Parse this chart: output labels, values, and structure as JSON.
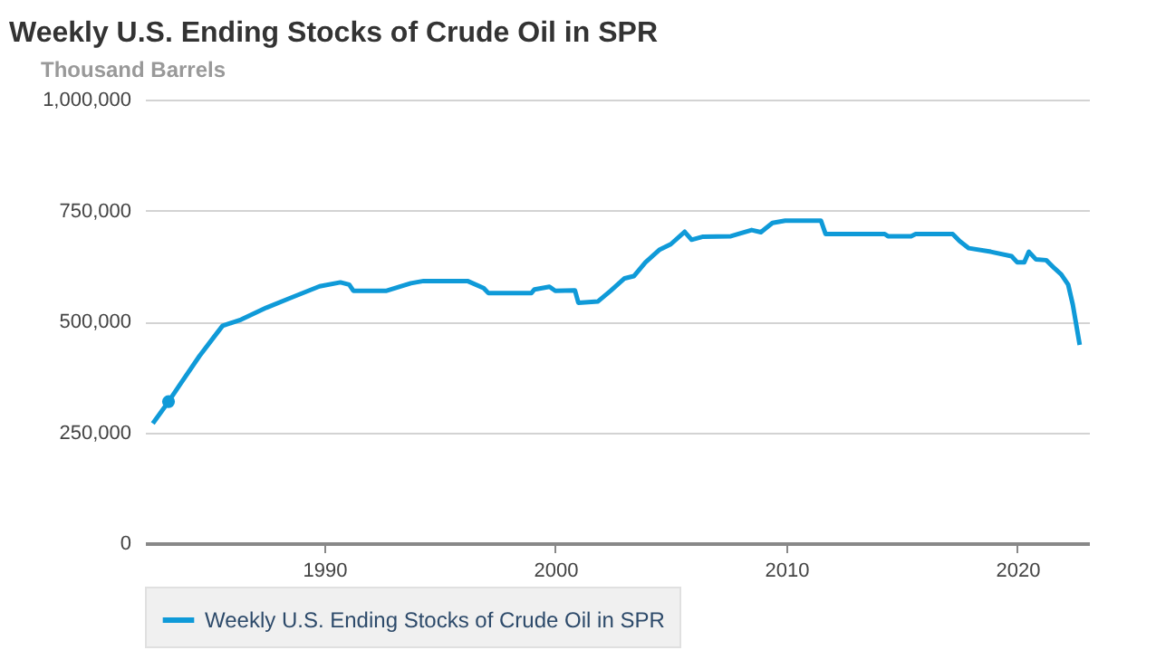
{
  "chart_data": {
    "type": "line",
    "title": "Weekly U.S. Ending Stocks of Crude Oil in SPR",
    "ylabel": "Thousand Barrels",
    "xlim": [
      1982.24,
      2023.1
    ],
    "xticks": [
      1990,
      2000,
      2010,
      2020
    ],
    "ylim": [
      0,
      1000000
    ],
    "yticks": [
      0,
      {
        "value": 250000,
        "label": "250,000"
      },
      {
        "value": 500000,
        "label": "500,000"
      },
      {
        "value": 750000,
        "label": "750,000"
      },
      {
        "value": 1000000,
        "label": "1,000,000"
      }
    ],
    "grid": "y",
    "legend": "bottom",
    "series": [
      {
        "name": "Weekly U.S. Ending Stocks of Crude Oil in SPR",
        "color": "#0f9ad8",
        "x": [
          1982.58,
          1983.26,
          1983.8,
          1984.6,
          1985.2,
          1985.6,
          1986.4,
          1987.5,
          1988.5,
          1989.8,
          1990.7,
          1991.08,
          1991.26,
          1992.7,
          1993.75,
          1994.3,
          1996.2,
          1996.9,
          1997.1,
          1998.97,
          1999.1,
          1999.75,
          2000.0,
          2000.85,
          2001.0,
          2001.85,
          2002.4,
          2003.0,
          2003.4,
          2003.9,
          2004.5,
          2005.0,
          2005.6,
          2005.9,
          2006.4,
          2007.6,
          2008.5,
          2008.9,
          2009.4,
          2009.95,
          2011.5,
          2011.7,
          2014.26,
          2014.4,
          2015.4,
          2015.6,
          2017.2,
          2017.5,
          2017.9,
          2018.85,
          2019.75,
          2020.0,
          2020.3,
          2020.5,
          2020.8,
          2021.25,
          2021.6,
          2021.9,
          2022.2,
          2022.4,
          2022.7
        ],
        "values": [
          270000,
          319000,
          361000,
          422000,
          463000,
          490000,
          504000,
          531000,
          552000,
          579000,
          588000,
          583000,
          569000,
          569000,
          586000,
          591000,
          591000,
          575000,
          564000,
          564000,
          572000,
          578000,
          569000,
          570000,
          542000,
          545000,
          569000,
          597000,
          602000,
          633000,
          661000,
          674000,
          702000,
          684000,
          691000,
          692000,
          706000,
          701000,
          722000,
          727000,
          727000,
          697000,
          697000,
          692000,
          692000,
          697000,
          697000,
          681000,
          665000,
          657000,
          647000,
          633000,
          633000,
          657000,
          640000,
          638000,
          620000,
          606000,
          583000,
          538000,
          447000
        ]
      },
      {
        "type": "scatter",
        "color": "#0f9ad8",
        "x": [
          1983.26
        ],
        "values": [
          319000
        ]
      }
    ]
  }
}
